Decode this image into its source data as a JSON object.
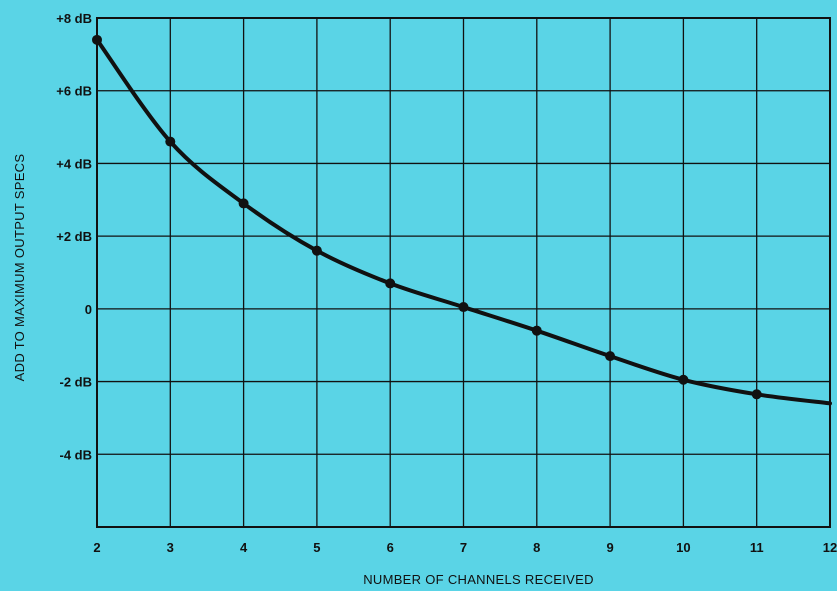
{
  "chart_data": {
    "type": "line",
    "title": "",
    "xlabel": "NUMBER OF CHANNELS RECEIVED",
    "ylabel": "ADD TO MAXIMUM OUTPUT SPECS",
    "xlim": [
      2,
      12
    ],
    "ylim": [
      -6,
      8
    ],
    "grid": true,
    "x_ticks": [
      2,
      3,
      4,
      5,
      6,
      7,
      8,
      9,
      10,
      11,
      12
    ],
    "x_tick_labels": [
      "2",
      "3",
      "4",
      "5",
      "6",
      "7",
      "8",
      "9",
      "10",
      "11",
      "12"
    ],
    "y_ticks": [
      8,
      6,
      4,
      2,
      0,
      -2,
      -4
    ],
    "y_tick_labels": [
      "+8 dB",
      "+6 dB",
      "+4 dB",
      "+2 dB",
      "0",
      "-2 dB",
      "-4 dB"
    ],
    "series": [
      {
        "x": [
          2,
          3,
          4,
          5,
          6,
          7,
          8,
          9,
          10,
          11,
          12
        ],
        "values": [
          7.4,
          4.6,
          2.9,
          1.6,
          0.7,
          0.05,
          -0.6,
          -1.3,
          -1.95,
          -2.35,
          -2.6
        ],
        "markers": [
          true,
          true,
          true,
          true,
          true,
          true,
          true,
          true,
          true,
          true,
          false
        ]
      }
    ],
    "colors": {
      "background": "#5ad4e6",
      "line": "#111111",
      "grid": "#111111"
    }
  }
}
